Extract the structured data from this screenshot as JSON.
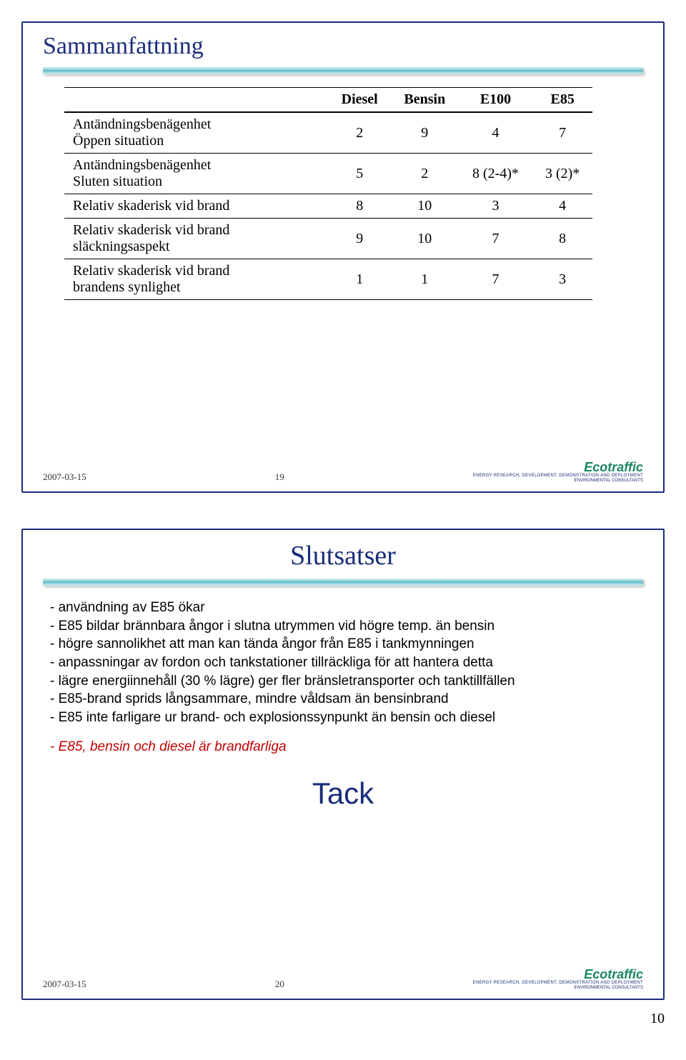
{
  "slide1": {
    "title": "Sammanfattning",
    "table": {
      "headers": [
        "",
        "Diesel",
        "Bensin",
        "E100",
        "E85"
      ],
      "rows": [
        {
          "label": "Antändningsbenägenhet\nÖppen situation",
          "vals": [
            "2",
            "9",
            "4",
            "7"
          ]
        },
        {
          "label": "Antändningsbenägenhet\nSluten situation",
          "vals": [
            "5",
            "2",
            "8 (2-4)*",
            "3 (2)*"
          ]
        },
        {
          "label": "Relativ skaderisk vid brand",
          "vals": [
            "8",
            "10",
            "3",
            "4"
          ]
        },
        {
          "label": "Relativ skaderisk vid brand\nsläckningsaspekt",
          "vals": [
            "9",
            "10",
            "7",
            "8"
          ]
        },
        {
          "label": "Relativ skaderisk vid brand\nbrandens synlighet",
          "vals": [
            "1",
            "1",
            "7",
            "3"
          ]
        }
      ]
    },
    "date": "2007-03-15",
    "page": "19"
  },
  "slide2": {
    "title": "Slutsatser",
    "bullets": [
      "- användning av E85 ökar",
      "- E85 bildar brännbara ångor i slutna utrymmen vid högre temp. än bensin",
      "- högre sannolikhet att man kan tända ångor från E85 i tankmynningen",
      "- anpassningar av fordon och tankstationer tillräckliga för att hantera detta",
      "- lägre energiinnehåll (30 % lägre) ger fler bränsletransporter och tanktillfällen",
      "- E85-brand sprids långsammare, mindre våldsam än bensinbrand",
      "- E85 inte farligare ur brand- och explosionssynpunkt än bensin och diesel"
    ],
    "bullet_red": "- E85, bensin och diesel är brandfarliga",
    "tack": "Tack",
    "date": "2007-03-15",
    "page": "20"
  },
  "logo": {
    "name": "Ecotraffic",
    "sub1": "ENERGY RESEARCH, DEVELOPMENT, DEMONSTRATION AND DEPLOYMENT",
    "sub2": "ENVIRONMENTAL CONSULTANTS"
  },
  "doc_page": "10",
  "colors": {
    "frame_border": "#1a2d7a",
    "title_color": "#1a2d7a",
    "bar_top": "#d7f0f2",
    "bar_mid": "#2aa0b0",
    "logo_green": "#1a875e",
    "black": "#000000",
    "red": "#c00000",
    "bg": "#ffffff"
  }
}
